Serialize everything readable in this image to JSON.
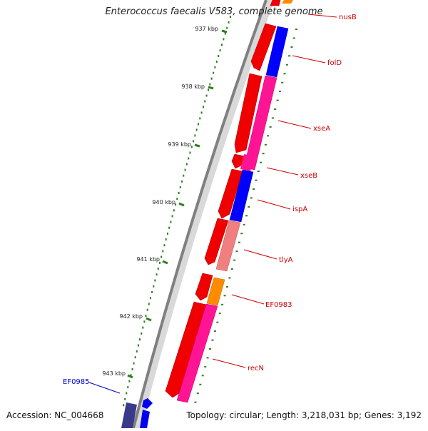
{
  "title": "Enterococcus faecalis V583, complete genome",
  "footer": {
    "accession": "Accession: NC_004668",
    "topology": "Topology: circular; Length: 3,218,031 bp; Genes: 3,192"
  },
  "colors": {
    "backbone": "#888888",
    "tick": "#2e7d1e",
    "label_red": "#cc0000",
    "label_blue": "#0000cc"
  },
  "ticks": [
    "937 kbp",
    "938 kbp",
    "939 kbp",
    "940 kbp",
    "941 kbp",
    "942 kbp",
    "943 kbp"
  ],
  "genes": [
    {
      "label": "nusB",
      "color": "#cc0000",
      "strand": "outer"
    },
    {
      "label": "folD",
      "color": "#cc0000",
      "strand": "outer"
    },
    {
      "label": "xseA",
      "color": "#cc0000",
      "strand": "outer"
    },
    {
      "label": "xseB",
      "color": "#cc0000",
      "strand": "outer"
    },
    {
      "label": "ispA",
      "color": "#cc0000",
      "strand": "outer"
    },
    {
      "label": "tlyA",
      "color": "#cc0000",
      "strand": "outer"
    },
    {
      "label": "EF0983",
      "color": "#cc0000",
      "strand": "outer"
    },
    {
      "label": "recN",
      "color": "#cc0000",
      "strand": "outer"
    },
    {
      "label": "EF0985",
      "color": "#0000cc",
      "strand": "inner"
    }
  ]
}
